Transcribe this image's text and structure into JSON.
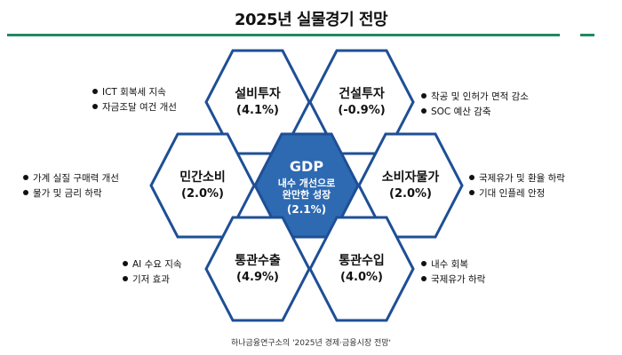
{
  "title": "2025년 실물경기 전망",
  "hexagons": {
    "capex": {
      "name": "설비투자",
      "value": "(4.1%)"
    },
    "construction": {
      "name": "건설투자",
      "value": "(-0.9%)"
    },
    "consumption": {
      "name": "민간소비",
      "value": "(2.0%)"
    },
    "center": {
      "name": "GDP",
      "line1": "내수 개선으로",
      "line2": "완만한 성장",
      "value": "(2.1%)"
    },
    "cpi": {
      "name": "소비자물가",
      "value": "(2.0%)"
    },
    "exports": {
      "name": "통관수출",
      "value": "(4.9%)"
    },
    "imports": {
      "name": "통관수입",
      "value": "(4.0%)"
    }
  },
  "notes": {
    "capex": [
      "ICT 회복세 지속",
      "자금조달 여건 개선"
    ],
    "construction": [
      "착공 및 인허가 면적 감소",
      "SOC 예산 감축"
    ],
    "consumption": [
      "가계 실질 구매력 개선",
      "물가 및 금리 하락"
    ],
    "cpi": [
      "국제유가 및 환율 하락",
      "기대 인플레 안정"
    ],
    "exports": [
      "AI 수요 지속",
      "기저 효과"
    ],
    "imports": [
      "내수 회복",
      "국제유가 하락"
    ]
  },
  "colors": {
    "accent_green": "#1f8a60",
    "hex_border": "#1e4f96",
    "center_fill": "#2e6ab2"
  },
  "source": "하나금융연구소의 '2025년 경제·금융시장 전망'"
}
